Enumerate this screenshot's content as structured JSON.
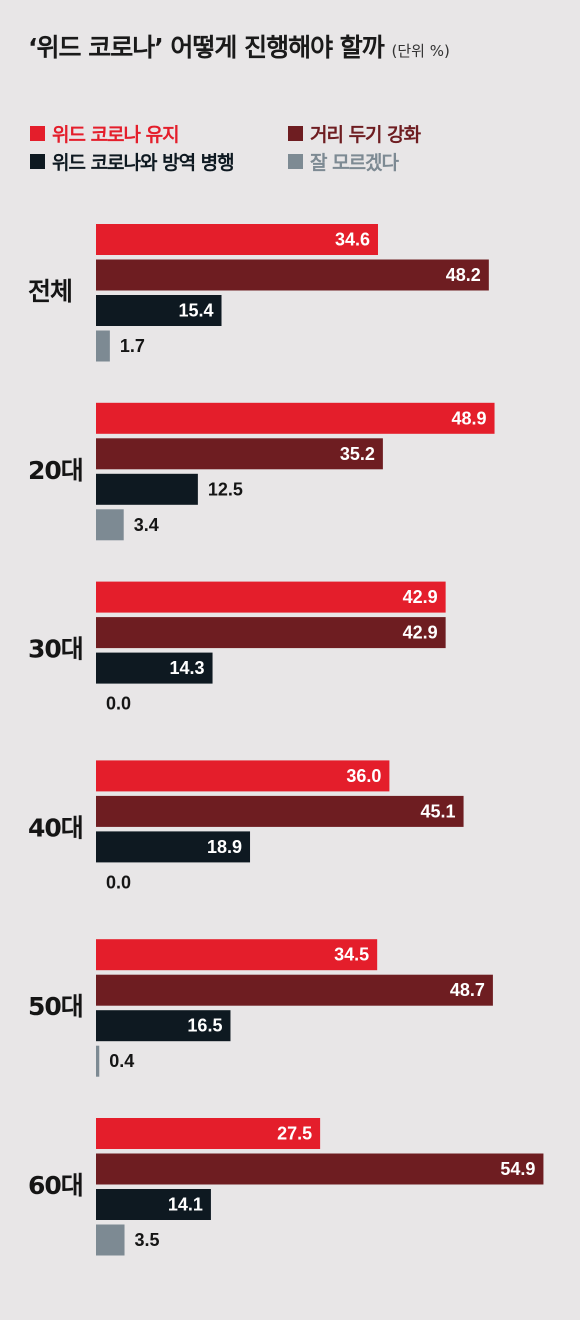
{
  "title": "‘위드 코로나’ 어떻게 진행해야 할까",
  "unit": "(단위 %)",
  "colors": {
    "background": "#e8e6e7",
    "series": [
      "#e41e2b",
      "#6e1d21",
      "#0e1921",
      "#7d8a93"
    ]
  },
  "chart_data": {
    "type": "bar",
    "orientation": "horizontal",
    "title": "‘위드 코로나’ 어떻게 진행해야 할까",
    "unit": "(단위 %)",
    "categories": [
      "전체",
      "20대",
      "30대",
      "40대",
      "50대",
      "60대"
    ],
    "series": [
      {
        "name": "위드 코로나 유지",
        "values": [
          34.6,
          48.9,
          42.9,
          36.0,
          34.5,
          27.5
        ]
      },
      {
        "name": "거리 두기 강화",
        "values": [
          48.2,
          35.2,
          42.9,
          45.1,
          48.7,
          54.9
        ]
      },
      {
        "name": "위드 코로나와 방역 병행",
        "values": [
          15.4,
          12.5,
          14.3,
          18.9,
          16.5,
          14.1
        ]
      },
      {
        "name": "잘 모르겠다",
        "values": [
          1.7,
          3.4,
          0.0,
          0.0,
          0.4,
          3.5
        ]
      }
    ],
    "value_labels": [
      [
        "34.6",
        "48.2",
        "15.4",
        "1.7"
      ],
      [
        "48.9",
        "35.2",
        "12.5",
        "3.4"
      ],
      [
        "42.9",
        "42.9",
        "14.3",
        "0.0"
      ],
      [
        "36.0",
        "45.1",
        "18.9",
        "0.0"
      ],
      [
        "34.5",
        "48.7",
        "16.5",
        "0.4"
      ],
      [
        "27.5",
        "54.9",
        "14.1",
        "3.5"
      ]
    ],
    "xlim": [
      0,
      60
    ],
    "grid": false,
    "legend": "top",
    "xlabel": "",
    "ylabel": ""
  }
}
